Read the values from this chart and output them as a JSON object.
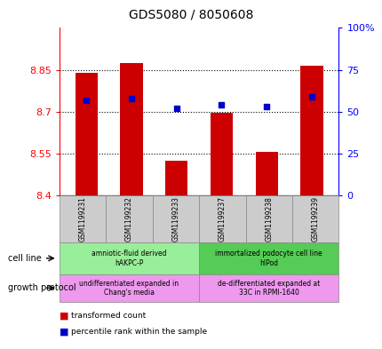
{
  "title": "GDS5080 / 8050608",
  "samples": [
    "GSM1199231",
    "GSM1199232",
    "GSM1199233",
    "GSM1199237",
    "GSM1199238",
    "GSM1199239"
  ],
  "transformed_count": [
    8.84,
    8.875,
    8.525,
    8.695,
    8.555,
    8.865
  ],
  "percentile_rank": [
    57,
    58,
    52,
    54,
    53,
    59
  ],
  "bar_color": "#cc0000",
  "dot_color": "#0000cc",
  "ylim": [
    8.4,
    9.0
  ],
  "y_ticks": [
    8.4,
    8.55,
    8.7,
    8.85
  ],
  "y_tick_labels": [
    "8.4",
    "8.55",
    "8.7",
    "8.85"
  ],
  "y2lim": [
    0,
    100
  ],
  "y2_ticks": [
    0,
    25,
    50,
    75,
    100
  ],
  "y2_tick_labels": [
    "0",
    "25",
    "50",
    "75",
    "100%"
  ],
  "cell_line_labels": [
    "amniotic-fluid derived\nhAKPC-P",
    "immortalized podocyte cell line\nhIPod"
  ],
  "cell_line_bgs": [
    "#99ee99",
    "#55cc55"
  ],
  "growth_protocol_labels": [
    "undifferentiated expanded in\nChang's media",
    "de-differentiated expanded at\n33C in RPMI-1640"
  ],
  "growth_protocol_bgs": [
    "#ee99ee",
    "#ee99ee"
  ],
  "sample_bg": "#cccccc",
  "legend_bar_label": "transformed count",
  "legend_dot_label": "percentile rank within the sample",
  "cell_line_text": "cell line",
  "growth_protocol_text": "growth protocol"
}
